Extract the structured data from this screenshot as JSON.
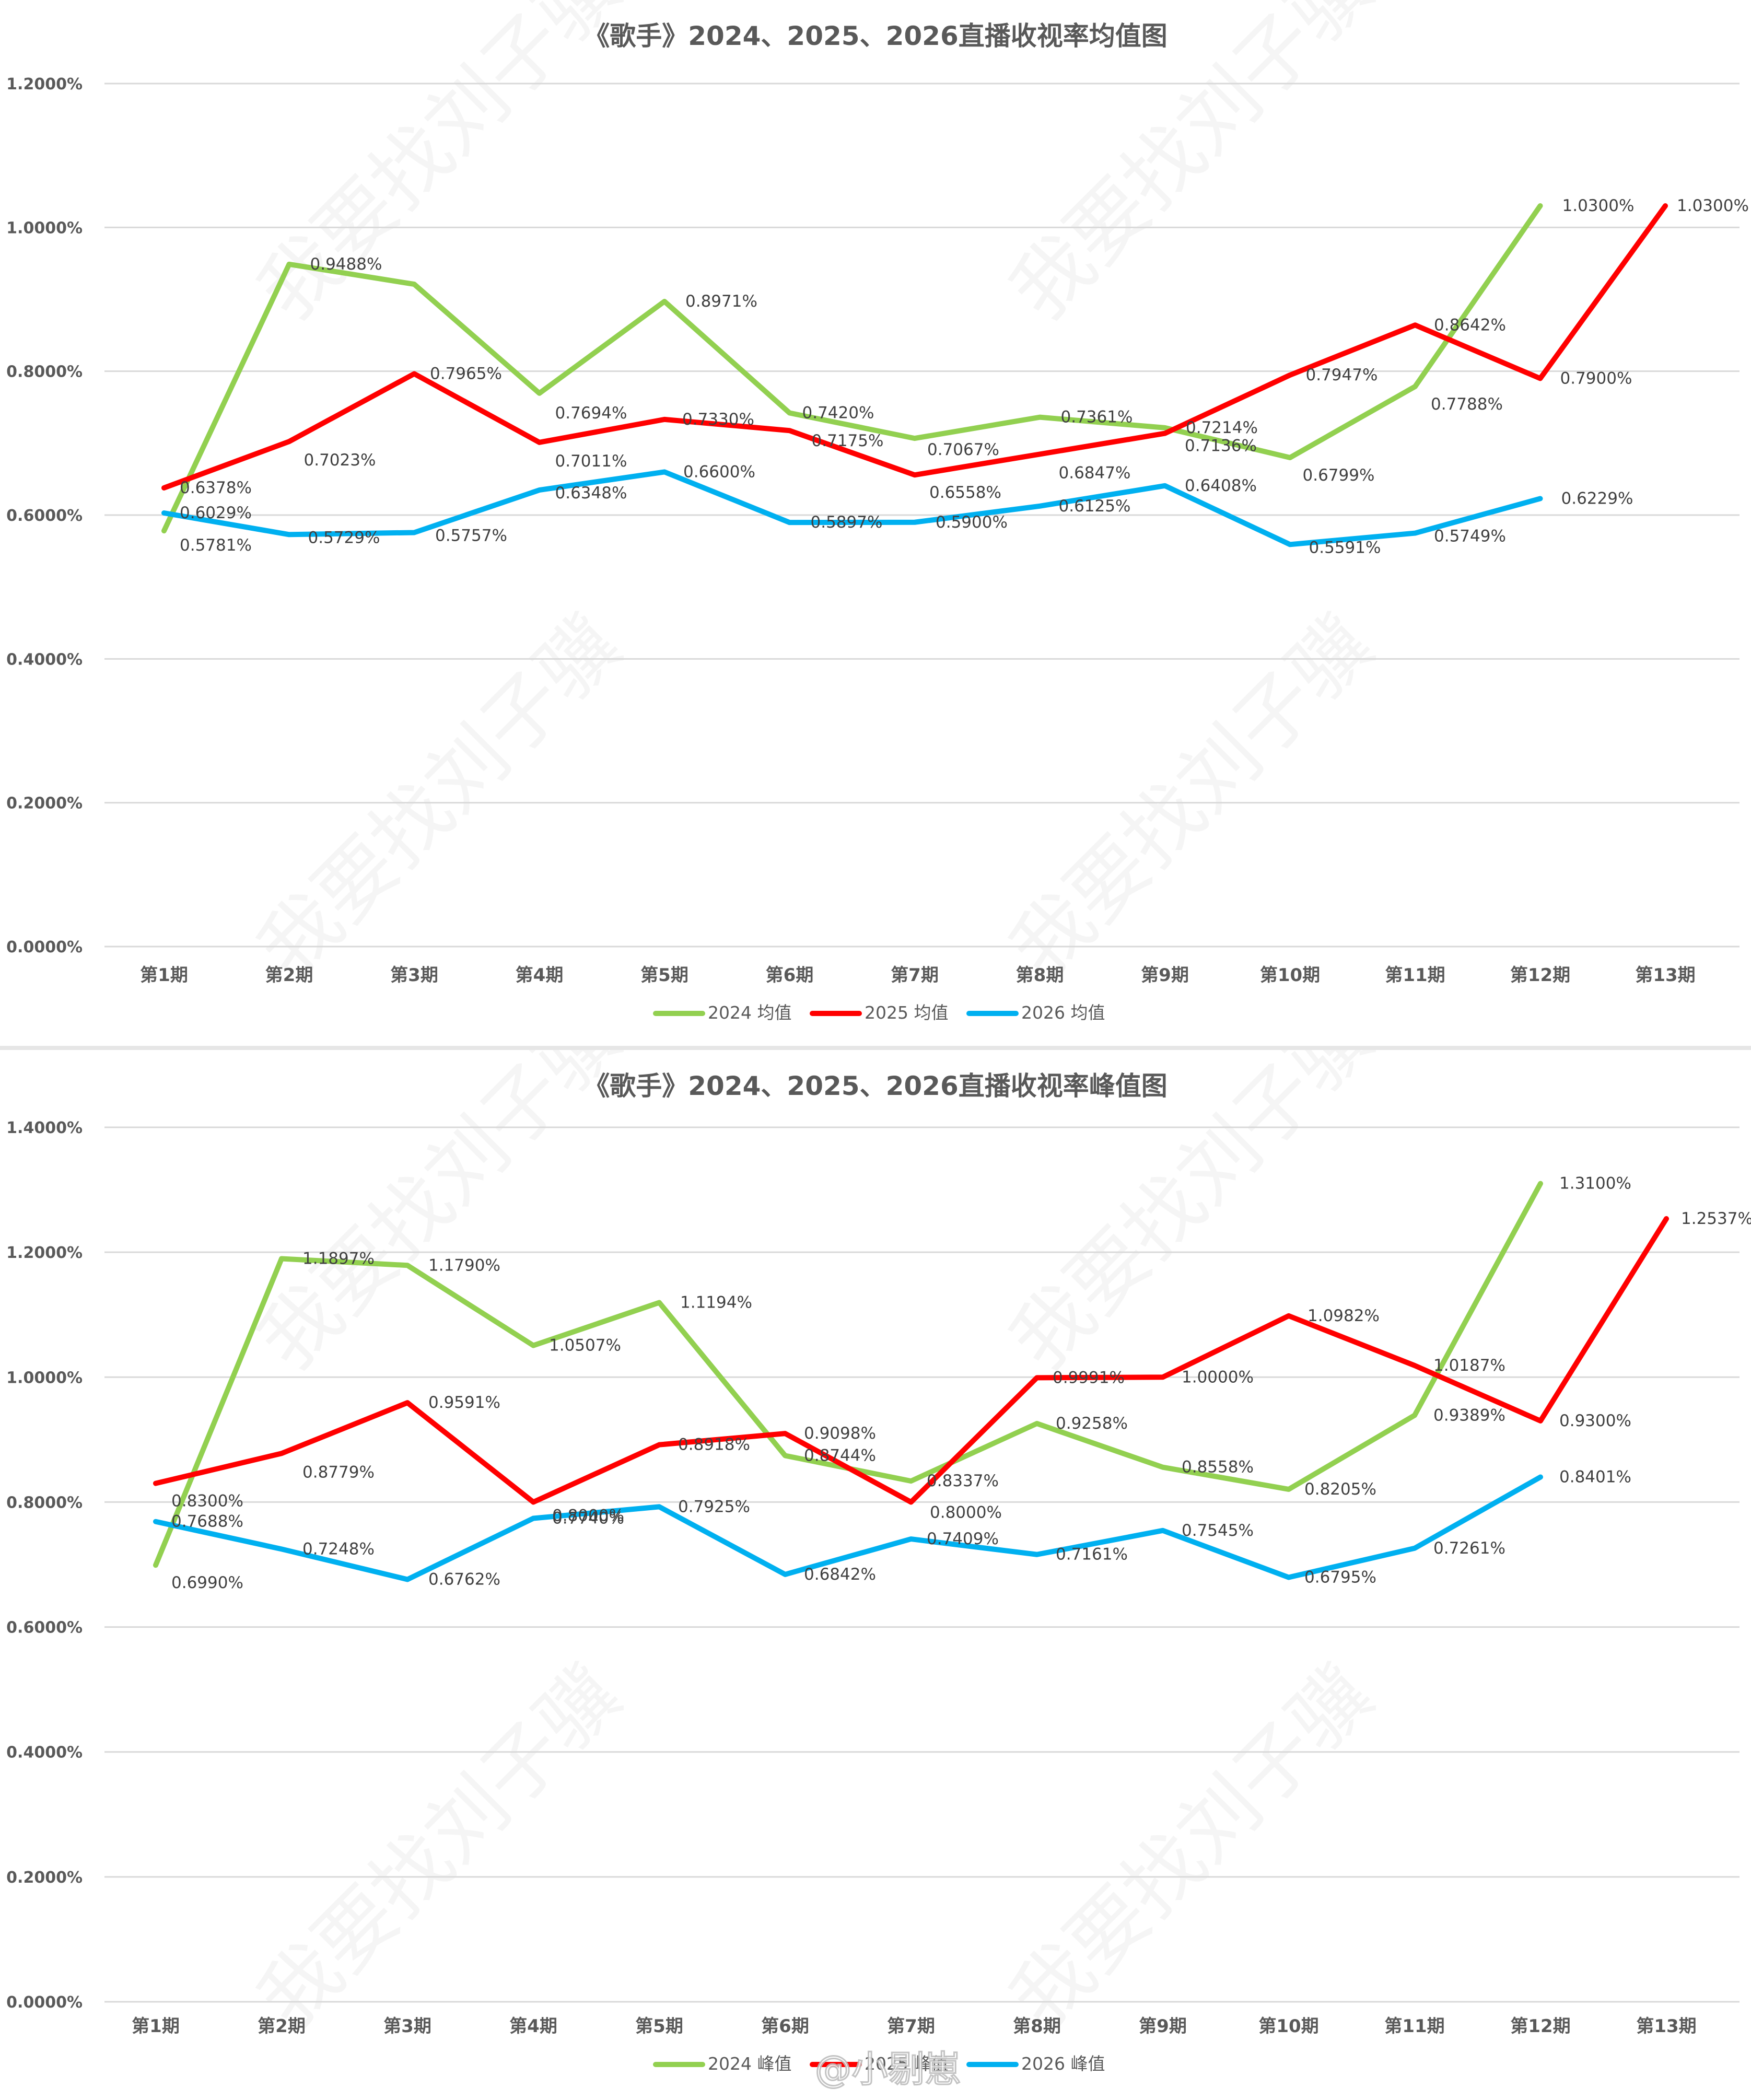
{
  "watermark": {
    "text": "我要找刘子骥",
    "weibo": "@小剔崽"
  },
  "colors": {
    "s2024": "#92d050",
    "s2025": "#ff0000",
    "s2026": "#00b0f0"
  },
  "chart_data": [
    {
      "type": "line",
      "title": "《歌手》2024、2025、2026直播收视率均值图",
      "categories": [
        "第1期",
        "第2期",
        "第3期",
        "第4期",
        "第5期",
        "第6期",
        "第7期",
        "第8期",
        "第9期",
        "第10期",
        "第11期",
        "第12期",
        "第13期"
      ],
      "ylim": [
        0,
        1.2
      ],
      "yticks": [
        0,
        0.2,
        0.4,
        0.6,
        0.8,
        1.0,
        1.2
      ],
      "ytick_labels": [
        "0.0000%",
        "0.2000%",
        "0.4000%",
        "0.6000%",
        "0.8000%",
        "1.0000%",
        "1.2000%"
      ],
      "grid": true,
      "legend": "bottom",
      "series": [
        {
          "name": "2024 均值",
          "color": "#92d050",
          "values": [
            0.5781,
            0.9488,
            0.921,
            0.7694,
            0.8971,
            0.742,
            0.7067,
            0.7361,
            0.7214,
            0.6799,
            0.7788,
            1.03,
            null
          ],
          "labels": [
            "0.5781%",
            "0.9488%",
            "",
            "0.7694%",
            "0.8971%",
            "0.7420%",
            "0.7067%",
            "0.7361%",
            "0.7214%",
            "0.6799%",
            "0.7788%",
            "1.0300%",
            ""
          ]
        },
        {
          "name": "2025 均值",
          "color": "#ff0000",
          "values": [
            0.6378,
            0.7023,
            0.7965,
            0.7011,
            0.733,
            0.7175,
            0.6558,
            0.6847,
            0.7136,
            0.7947,
            0.8642,
            0.79,
            1.03
          ],
          "labels": [
            "0.6378%",
            "0.7023%",
            "0.7965%",
            "0.7011%",
            "0.7330%",
            "0.7175%",
            "0.6558%",
            "0.6847%",
            "0.7136%",
            "0.7947%",
            "0.8642%",
            "0.7900%",
            "1.0300%"
          ]
        },
        {
          "name": "2026 均值",
          "color": "#00b0f0",
          "values": [
            0.6029,
            0.5729,
            0.5757,
            0.6348,
            0.66,
            0.5897,
            0.59,
            0.6125,
            0.6408,
            0.5591,
            0.5749,
            0.6229,
            null
          ],
          "labels": [
            "0.6029%",
            "0.5729%",
            "0.5757%",
            "0.6348%",
            "0.6600%",
            "0.5897%",
            "0.5900%",
            "0.6125%",
            "0.6408%",
            "0.5591%",
            "0.5749%",
            "0.6229%",
            ""
          ]
        }
      ]
    },
    {
      "type": "line",
      "title": "《歌手》2024、2025、2026直播收视率峰值图",
      "categories": [
        "第1期",
        "第2期",
        "第3期",
        "第4期",
        "第5期",
        "第6期",
        "第7期",
        "第8期",
        "第9期",
        "第10期",
        "第11期",
        "第12期",
        "第13期"
      ],
      "ylim": [
        0,
        1.4
      ],
      "yticks": [
        0,
        0.2,
        0.4,
        0.6,
        0.8,
        1.0,
        1.2,
        1.4
      ],
      "ytick_labels": [
        "0.0000%",
        "0.2000%",
        "0.4000%",
        "0.6000%",
        "0.8000%",
        "1.0000%",
        "1.2000%",
        "1.4000%"
      ],
      "grid": true,
      "legend": "bottom",
      "series": [
        {
          "name": "2024 峰值",
          "color": "#92d050",
          "values": [
            0.699,
            1.1897,
            1.179,
            1.0507,
            1.1194,
            0.8744,
            0.8337,
            0.9258,
            0.8558,
            0.8205,
            0.9389,
            1.31,
            null
          ],
          "labels": [
            "0.6990%",
            "1.1897%",
            "1.1790%",
            "1.0507%",
            "1.1194%",
            "0.8744%",
            "0.8337%",
            "0.9258%",
            "0.8558%",
            "0.8205%",
            "0.9389%",
            "1.3100%",
            ""
          ]
        },
        {
          "name": "2025 峰值",
          "color": "#ff0000",
          "values": [
            0.83,
            0.8779,
            0.9591,
            0.8,
            0.8918,
            0.9098,
            0.8,
            0.9991,
            1.0,
            1.0982,
            1.0187,
            0.93,
            1.2537
          ],
          "labels": [
            "0.8300%",
            "0.8779%",
            "0.9591%",
            "0.8000%",
            "0.8918%",
            "0.9098%",
            "0.8000%",
            "0.9991%",
            "1.0000%",
            "1.0982%",
            "1.0187%",
            "0.9300%",
            "1.2537%"
          ]
        },
        {
          "name": "2026 峰值",
          "color": "#00b0f0",
          "values": [
            0.7688,
            0.7248,
            0.6762,
            0.774,
            0.7925,
            0.6842,
            0.7409,
            0.7161,
            0.7545,
            0.6795,
            0.7261,
            0.8401,
            null
          ],
          "labels": [
            "0.7688%",
            "0.7248%",
            "0.6762%",
            "0.7740%",
            "0.7925%",
            "0.6842%",
            "0.7409%",
            "0.7161%",
            "0.7545%",
            "0.6795%",
            "0.7261%",
            "0.8401%",
            ""
          ]
        }
      ]
    }
  ]
}
